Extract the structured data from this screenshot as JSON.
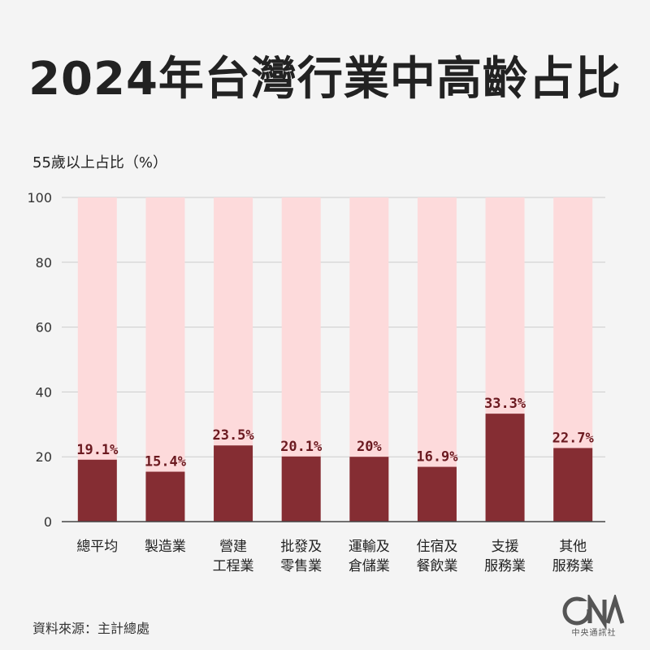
{
  "title": "2024年台灣行業中高齡占比",
  "source": "資料來源：主計總處",
  "logo_caption": "中央通訊社",
  "colors": {
    "bar": "#852d33",
    "background_bar": "#fddadb",
    "grid": "#cccccc",
    "label": "#6b1a20"
  },
  "chart_data": {
    "type": "bar",
    "ylabel": "55歲以上占比（%）",
    "ylim": [
      0,
      100
    ],
    "yticks": [
      0,
      20,
      40,
      60,
      80,
      100
    ],
    "grid": true,
    "categories": [
      [
        "總平均"
      ],
      [
        "製造業"
      ],
      [
        "營建",
        "工程業"
      ],
      [
        "批發及",
        "零售業"
      ],
      [
        "運輸及",
        "倉儲業"
      ],
      [
        "住宿及",
        "餐飲業"
      ],
      [
        "支援",
        "服務業"
      ],
      [
        "其他",
        "服務業"
      ]
    ],
    "values": [
      19.1,
      15.4,
      23.5,
      20.1,
      20,
      16.9,
      33.3,
      22.7
    ],
    "value_labels": [
      "19.1%",
      "15.4%",
      "23.5%",
      "20.1%",
      "20%",
      "16.9%",
      "33.3%",
      "22.7%"
    ]
  }
}
